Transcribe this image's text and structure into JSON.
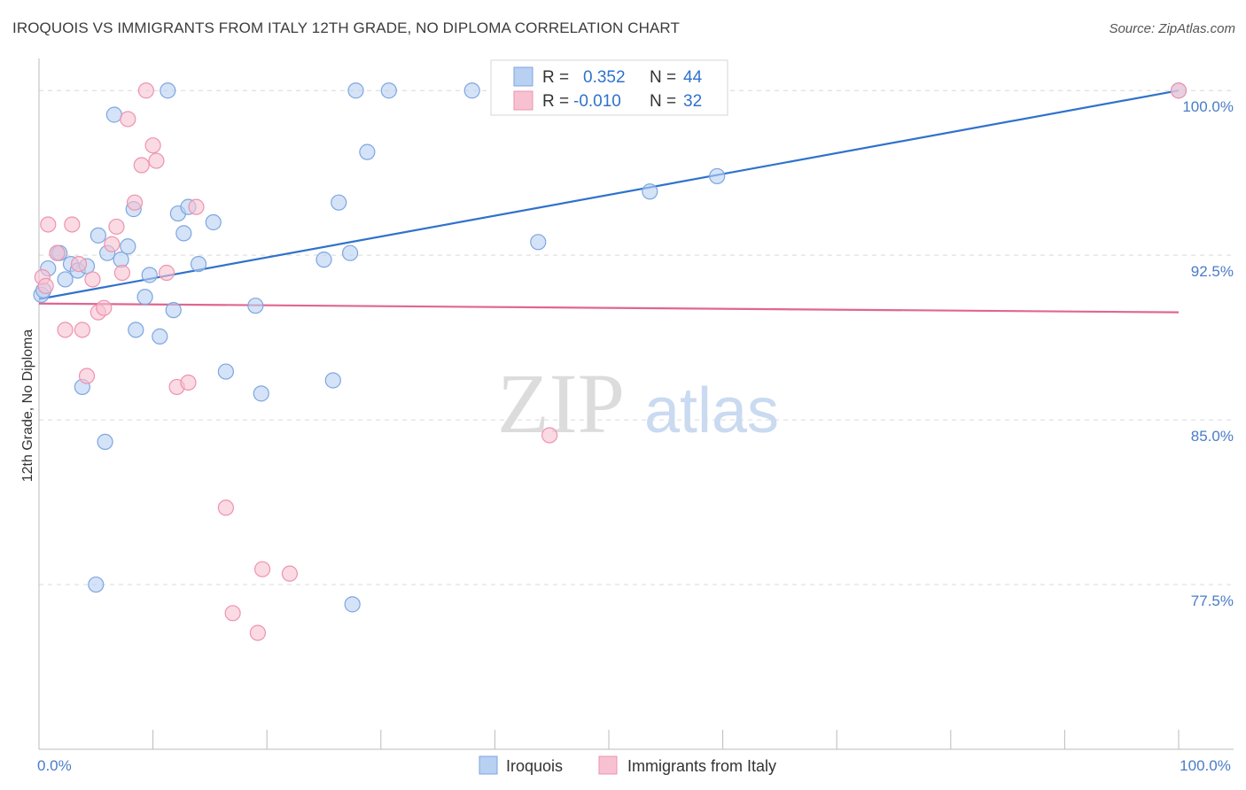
{
  "title": "IROQUOIS VS IMMIGRANTS FROM ITALY 12TH GRADE, NO DIPLOMA CORRELATION CHART",
  "source": "Source: ZipAtlas.com",
  "watermark": {
    "zip": "ZIP",
    "atlas": "atlas"
  },
  "colors": {
    "blue_fill": "#b8d0f2",
    "blue_stroke": "#7ea6e0",
    "blue_line": "#2f72cc",
    "pink_fill": "#f7c1d1",
    "pink_stroke": "#ee93b0",
    "pink_line": "#e06691",
    "tick_text": "#4a7cc7",
    "grid": "#d9d9d9"
  },
  "legend": {
    "rows": [
      {
        "series": "Iroquois",
        "r_label": "R =",
        "r_value": "0.352",
        "n_label": "N =",
        "n_value": "44"
      },
      {
        "series": "Immigrants from Italy",
        "r_label": "R =",
        "r_value": "-0.010",
        "n_label": "N =",
        "n_value": "32"
      }
    ]
  },
  "chart_data": {
    "type": "scatter",
    "title": "IROQUOIS VS IMMIGRANTS FROM ITALY 12TH GRADE, NO DIPLOMA CORRELATION CHART",
    "xlabel": "",
    "ylabel": "12th Grade, No Diploma",
    "xlim": [
      0,
      100
    ],
    "ylim": [
      70.0,
      101.3
    ],
    "x_ticks": [
      0,
      10,
      20,
      30,
      40,
      50,
      60,
      70,
      80,
      90,
      100
    ],
    "x_tick_labels": [
      {
        "value": 0,
        "label": "0.0%"
      },
      {
        "value": 100,
        "label": "100.0%"
      }
    ],
    "y_ticks": [
      {
        "value": 77.5,
        "label": "77.5%"
      },
      {
        "value": 85.0,
        "label": "85.0%"
      },
      {
        "value": 92.5,
        "label": "92.5%"
      },
      {
        "value": 100.0,
        "label": "100.0%"
      }
    ],
    "grid": true,
    "series": [
      {
        "name": "Iroquois",
        "color": "#b8d0f2",
        "trend": {
          "x": [
            0,
            100
          ],
          "y": [
            90.5,
            100.0
          ]
        },
        "points": [
          {
            "x": 0.2,
            "y": 90.7
          },
          {
            "x": 0.4,
            "y": 90.9
          },
          {
            "x": 0.8,
            "y": 91.9
          },
          {
            "x": 1.6,
            "y": 92.6
          },
          {
            "x": 1.8,
            "y": 92.6
          },
          {
            "x": 2.3,
            "y": 91.4
          },
          {
            "x": 2.8,
            "y": 92.1
          },
          {
            "x": 3.4,
            "y": 91.8
          },
          {
            "x": 3.8,
            "y": 86.5
          },
          {
            "x": 4.2,
            "y": 92.0
          },
          {
            "x": 5.0,
            "y": 77.5
          },
          {
            "x": 5.2,
            "y": 93.4
          },
          {
            "x": 5.8,
            "y": 84.0
          },
          {
            "x": 6.0,
            "y": 92.6
          },
          {
            "x": 6.6,
            "y": 98.9
          },
          {
            "x": 7.2,
            "y": 92.3
          },
          {
            "x": 7.8,
            "y": 92.9
          },
          {
            "x": 8.3,
            "y": 94.6
          },
          {
            "x": 8.5,
            "y": 89.1
          },
          {
            "x": 9.3,
            "y": 90.6
          },
          {
            "x": 9.7,
            "y": 91.6
          },
          {
            "x": 10.6,
            "y": 88.8
          },
          {
            "x": 11.3,
            "y": 100.0
          },
          {
            "x": 11.8,
            "y": 90.0
          },
          {
            "x": 12.2,
            "y": 94.4
          },
          {
            "x": 12.7,
            "y": 93.5
          },
          {
            "x": 13.1,
            "y": 94.7
          },
          {
            "x": 14.0,
            "y": 92.1
          },
          {
            "x": 15.3,
            "y": 94.0
          },
          {
            "x": 16.4,
            "y": 87.2
          },
          {
            "x": 19.0,
            "y": 90.2
          },
          {
            "x": 19.5,
            "y": 86.2
          },
          {
            "x": 25.0,
            "y": 92.3
          },
          {
            "x": 25.8,
            "y": 86.8
          },
          {
            "x": 26.3,
            "y": 94.9
          },
          {
            "x": 27.3,
            "y": 92.6
          },
          {
            "x": 27.5,
            "y": 76.6
          },
          {
            "x": 27.8,
            "y": 100.0
          },
          {
            "x": 28.8,
            "y": 97.2
          },
          {
            "x": 30.7,
            "y": 100.0
          },
          {
            "x": 38.0,
            "y": 100.0
          },
          {
            "x": 43.8,
            "y": 93.1
          },
          {
            "x": 53.6,
            "y": 95.4
          },
          {
            "x": 59.5,
            "y": 96.1
          },
          {
            "x": 100.0,
            "y": 100.0
          }
        ]
      },
      {
        "name": "Immigrants from Italy",
        "color": "#f7c1d1",
        "trend": {
          "x": [
            0,
            100
          ],
          "y": [
            90.3,
            89.9
          ]
        },
        "points": [
          {
            "x": 0.3,
            "y": 91.5
          },
          {
            "x": 0.6,
            "y": 91.1
          },
          {
            "x": 0.8,
            "y": 93.9
          },
          {
            "x": 1.6,
            "y": 92.6
          },
          {
            "x": 2.3,
            "y": 89.1
          },
          {
            "x": 2.9,
            "y": 93.9
          },
          {
            "x": 3.5,
            "y": 92.1
          },
          {
            "x": 3.8,
            "y": 89.1
          },
          {
            "x": 4.2,
            "y": 87.0
          },
          {
            "x": 4.7,
            "y": 91.4
          },
          {
            "x": 5.2,
            "y": 89.9
          },
          {
            "x": 5.7,
            "y": 90.1
          },
          {
            "x": 6.4,
            "y": 93.0
          },
          {
            "x": 6.8,
            "y": 93.8
          },
          {
            "x": 7.3,
            "y": 91.7
          },
          {
            "x": 7.8,
            "y": 98.7
          },
          {
            "x": 8.4,
            "y": 94.9
          },
          {
            "x": 9.0,
            "y": 96.6
          },
          {
            "x": 9.4,
            "y": 100.0
          },
          {
            "x": 10.0,
            "y": 97.5
          },
          {
            "x": 10.3,
            "y": 96.8
          },
          {
            "x": 11.2,
            "y": 91.7
          },
          {
            "x": 12.1,
            "y": 86.5
          },
          {
            "x": 13.1,
            "y": 86.7
          },
          {
            "x": 13.8,
            "y": 94.7
          },
          {
            "x": 16.4,
            "y": 81.0
          },
          {
            "x": 17.0,
            "y": 76.2
          },
          {
            "x": 19.2,
            "y": 75.3
          },
          {
            "x": 19.6,
            "y": 78.2
          },
          {
            "x": 22.0,
            "y": 78.0
          },
          {
            "x": 44.8,
            "y": 84.3
          },
          {
            "x": 100.0,
            "y": 100.0
          }
        ]
      }
    ]
  }
}
